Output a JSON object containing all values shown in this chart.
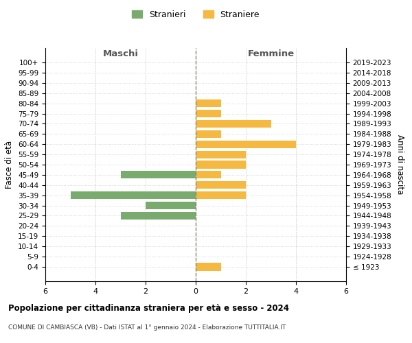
{
  "age_groups": [
    "100+",
    "95-99",
    "90-94",
    "85-89",
    "80-84",
    "75-79",
    "70-74",
    "65-69",
    "60-64",
    "55-59",
    "50-54",
    "45-49",
    "40-44",
    "35-39",
    "30-34",
    "25-29",
    "20-24",
    "15-19",
    "10-14",
    "5-9",
    "0-4"
  ],
  "birth_years": [
    "≤ 1923",
    "1924-1928",
    "1929-1933",
    "1934-1938",
    "1939-1943",
    "1944-1948",
    "1949-1953",
    "1954-1958",
    "1959-1963",
    "1964-1968",
    "1969-1973",
    "1974-1978",
    "1979-1983",
    "1984-1988",
    "1989-1993",
    "1994-1998",
    "1999-2003",
    "2004-2008",
    "2009-2013",
    "2014-2018",
    "2019-2023"
  ],
  "maschi": [
    0,
    0,
    0,
    0,
    0,
    0,
    0,
    0,
    0,
    0,
    0,
    3,
    0,
    5,
    2,
    3,
    0,
    0,
    0,
    0,
    0
  ],
  "femmine": [
    0,
    0,
    0,
    0,
    1,
    1,
    3,
    1,
    4,
    2,
    2,
    1,
    2,
    2,
    0,
    0,
    0,
    0,
    0,
    0,
    1
  ],
  "color_maschi": "#7aab6e",
  "color_femmine": "#f5b942",
  "title": "Popolazione per cittadinanza straniera per età e sesso - 2024",
  "subtitle": "COMUNE DI CAMBIASCA (VB) - Dati ISTAT al 1° gennaio 2024 - Elaborazione TUTTITALIA.IT",
  "xlabel_left": "Maschi",
  "xlabel_right": "Femmine",
  "ylabel_left": "Fasce di età",
  "ylabel_right": "Anni di nascita",
  "xlim": 6,
  "legend_stranieri": "Stranieri",
  "legend_straniere": "Straniere",
  "background_color": "#ffffff",
  "grid_color": "#cccccc",
  "bar_height": 0.75
}
